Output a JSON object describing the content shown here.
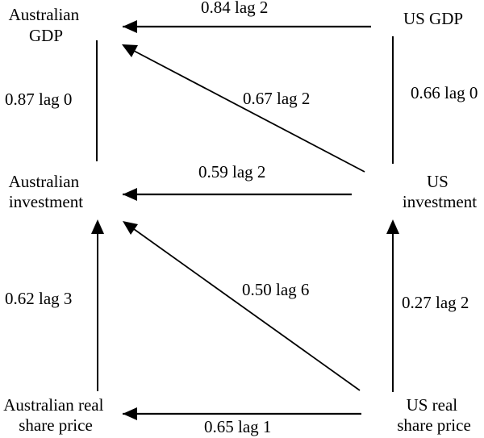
{
  "nodes": {
    "aus_gdp": [
      "Australian",
      "GDP"
    ],
    "us_gdp": [
      "US GDP"
    ],
    "aus_investment": [
      "Australian",
      "investment"
    ],
    "us_investment": [
      "US",
      "investment"
    ],
    "aus_share_price": [
      "Australian real",
      "share price"
    ],
    "us_share_price": [
      "US real",
      "share price"
    ]
  },
  "links": {
    "us_gdp_to_aus_gdp": "0.84 lag 2",
    "aus_gdp_aus_investment": "0.87 lag 0",
    "us_investment_to_aus_gdp": "0.67 lag 2",
    "us_gdp_us_investment": "0.66 lag 0",
    "us_investment_to_aus_investment": "0.59 lag 2",
    "aus_share_price_to_aus_investment": "0.62 lag 3",
    "us_share_price_to_aus_investment": "0.50 lag 6",
    "us_share_price_to_us_investment": "0.27 lag 2",
    "us_share_price_to_aus_share_price": "0.65 lag 1"
  }
}
